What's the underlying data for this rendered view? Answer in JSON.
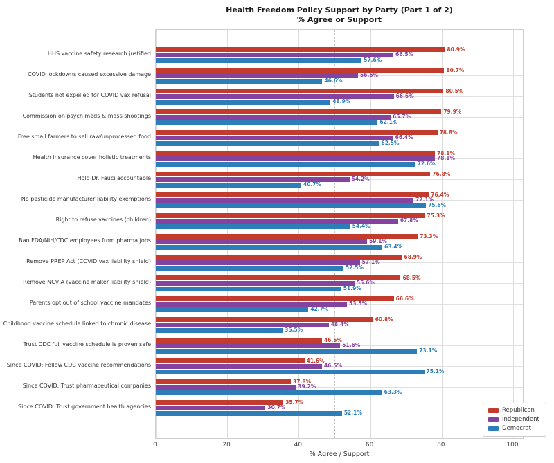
{
  "chart_data": {
    "type": "bar",
    "orientation": "horizontal",
    "title": "Health Freedom Policy Support by Party (Part 1 of 2)",
    "subtitle": "% Agree or Support",
    "xlabel": "% Agree / Support",
    "xlim": [
      0,
      103
    ],
    "xticks": [
      0,
      20,
      40,
      60,
      80,
      100
    ],
    "reference_line_x": 50,
    "grid": true,
    "legend_position": "lower right",
    "value_label_suffix": "%",
    "categories": [
      "HHS vaccine safety research justified",
      "COVID lockdowns caused excessive damage",
      "Students not expelled for COVID vax refusal",
      "Commission on psych meds & mass shootings",
      "Free small farmers to sell raw/unprocessed food",
      "Health insurance cover holistic treatments",
      "Hold Dr. Fauci accountable",
      "No pesticide manufacturer liability exemptions",
      "Right to refuse vaccines (children)",
      "Ban FDA/NIH/CDC employees from pharma jobs",
      "Remove PREP Act (COVID vax liability shield)",
      "Remove NCVIA (vaccine maker liability shield)",
      "Parents opt out of school vaccine mandates",
      "Childhood vaccine schedule linked to chronic disease",
      "Trust CDC full vaccine schedule is proven safe",
      "Since COVID: Follow CDC vaccine recommendations",
      "Since COVID: Trust pharmaceutical companies",
      "Since COVID: Trust government health agencies"
    ],
    "series": [
      {
        "name": "Republican",
        "color": "#c33b2c",
        "values": [
          80.9,
          80.7,
          80.5,
          79.9,
          78.8,
          78.1,
          76.8,
          76.4,
          75.3,
          73.3,
          68.9,
          68.5,
          66.6,
          60.8,
          46.5,
          41.6,
          37.8,
          35.7
        ]
      },
      {
        "name": "Independent",
        "color": "#8543a0",
        "values": [
          66.5,
          56.6,
          66.6,
          65.7,
          66.4,
          78.1,
          54.2,
          72.1,
          67.8,
          59.1,
          57.1,
          55.6,
          53.5,
          48.4,
          51.6,
          46.5,
          39.2,
          30.7
        ]
      },
      {
        "name": "Democrat",
        "color": "#2d7eb8",
        "values": [
          57.6,
          46.6,
          48.9,
          62.1,
          62.5,
          72.6,
          40.7,
          75.6,
          54.4,
          63.4,
          52.5,
          51.9,
          42.7,
          35.5,
          73.1,
          75.1,
          63.3,
          52.1
        ]
      }
    ]
  }
}
